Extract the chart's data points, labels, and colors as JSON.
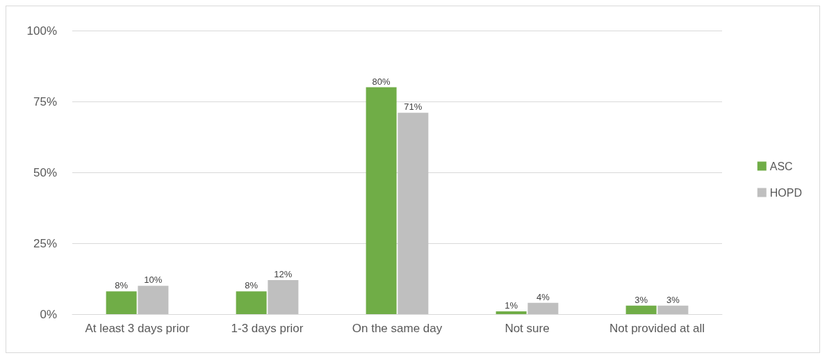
{
  "chart_data": {
    "type": "bar",
    "categories": [
      "At least 3 days prior",
      "1-3 days prior",
      "On the same day",
      "Not sure",
      "Not provided at all"
    ],
    "series": [
      {
        "name": "ASC",
        "color": "#70ad47",
        "values": [
          8,
          8,
          80,
          1,
          3
        ],
        "value_labels": [
          "8%",
          "8%",
          "80%",
          "1%",
          "3%"
        ]
      },
      {
        "name": "HOPD",
        "color": "#bfbfbf",
        "values": [
          10,
          12,
          71,
          4,
          3
        ],
        "value_labels": [
          "10%",
          "12%",
          "71%",
          "4%",
          "3%"
        ]
      }
    ],
    "ylim": [
      0,
      100
    ],
    "yticks": [
      {
        "value": 0,
        "label": "0%"
      },
      {
        "value": 25,
        "label": "25%"
      },
      {
        "value": 50,
        "label": "50%"
      },
      {
        "value": 75,
        "label": "75%"
      },
      {
        "value": 100,
        "label": "100%"
      }
    ],
    "grid": "y",
    "legend": "right"
  }
}
